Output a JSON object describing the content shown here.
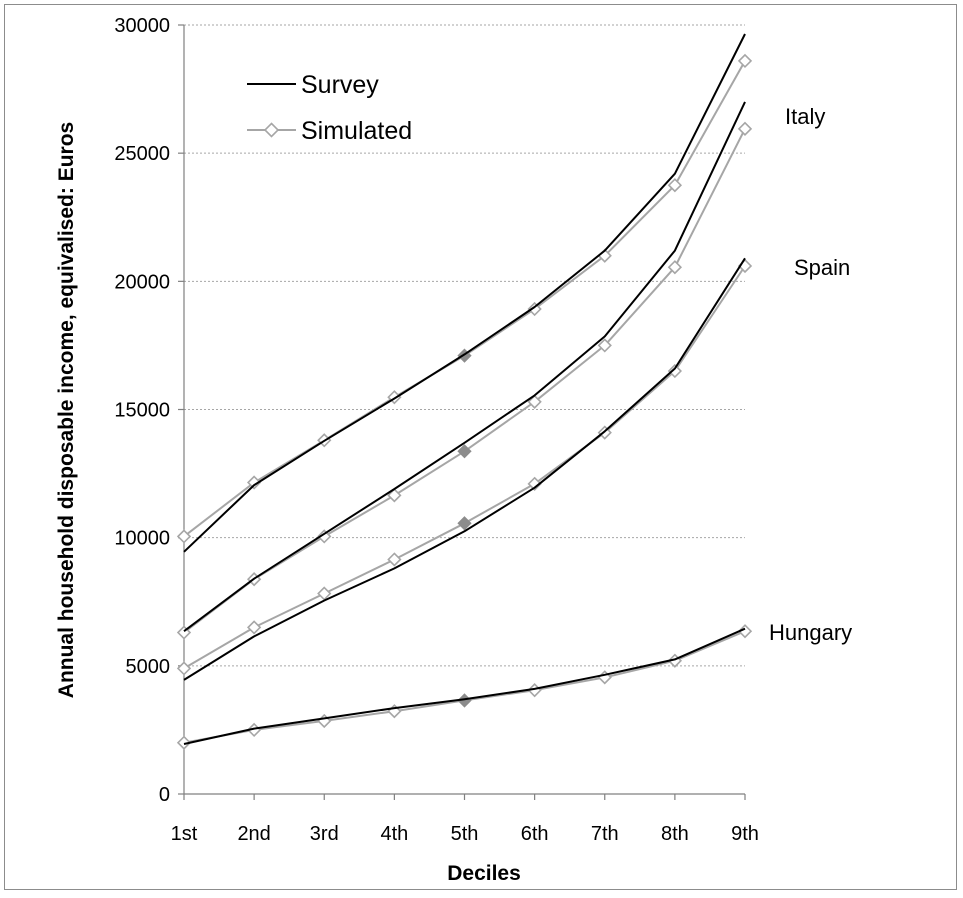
{
  "chart_data": {
    "type": "line",
    "title": "",
    "xlabel": "Deciles",
    "ylabel": "Annual household disposable income, equivalised: Euros",
    "categories": [
      "1st",
      "2nd",
      "3rd",
      "4th",
      "5th",
      "6th",
      "7th",
      "8th",
      "9th"
    ],
    "ylim": [
      0,
      30000
    ],
    "yticks": [
      "0",
      "5000",
      "10000",
      "15000",
      "20000",
      "25000",
      "30000"
    ],
    "grid": "horizontal dotted",
    "legend": {
      "placement": "top-left",
      "entries": [
        {
          "label": "Survey",
          "color": "#000000",
          "marker": "none"
        },
        {
          "label": "Simulated",
          "color": "#a6a6a6",
          "marker": "diamond"
        }
      ]
    },
    "series": [
      {
        "group": "Italy top",
        "type": "Survey",
        "values": [
          9450,
          12050,
          13780,
          15430,
          17150,
          19000,
          21200,
          24200,
          29650
        ]
      },
      {
        "group": "Italy top",
        "type": "Simulated",
        "values": [
          10050,
          12150,
          13800,
          15480,
          17100,
          18920,
          21000,
          23750,
          28600
        ]
      },
      {
        "group": "Spain",
        "type": "Survey",
        "values": [
          6350,
          8400,
          10150,
          11900,
          13700,
          15550,
          17850,
          21200,
          27000
        ]
      },
      {
        "group": "Spain",
        "type": "Simulated",
        "values": [
          6300,
          8380,
          10050,
          11650,
          13370,
          15300,
          17500,
          20550,
          25950
        ]
      },
      {
        "group": "Third",
        "type": "Survey",
        "values": [
          4450,
          6150,
          7550,
          8800,
          10250,
          11950,
          14150,
          16600,
          20900
        ]
      },
      {
        "group": "Third",
        "type": "Simulated",
        "values": [
          4900,
          6500,
          7820,
          9150,
          10560,
          12100,
          14100,
          16500,
          20600
        ]
      },
      {
        "group": "Hungary",
        "type": "Survey",
        "values": [
          1950,
          2550,
          2950,
          3350,
          3700,
          4100,
          4650,
          5250,
          6450
        ]
      },
      {
        "group": "Hungary",
        "type": "Simulated",
        "values": [
          2000,
          2500,
          2850,
          3230,
          3650,
          4050,
          4550,
          5200,
          6350
        ]
      }
    ],
    "annotations": [
      "Italy",
      "Spain",
      "Hungary"
    ],
    "filled_markers_at": "5th"
  },
  "colors": {
    "survey": "#000000",
    "simulated": "#a6a6a6",
    "grid": "#a6a6a6",
    "frame": "#8c8c8c"
  }
}
